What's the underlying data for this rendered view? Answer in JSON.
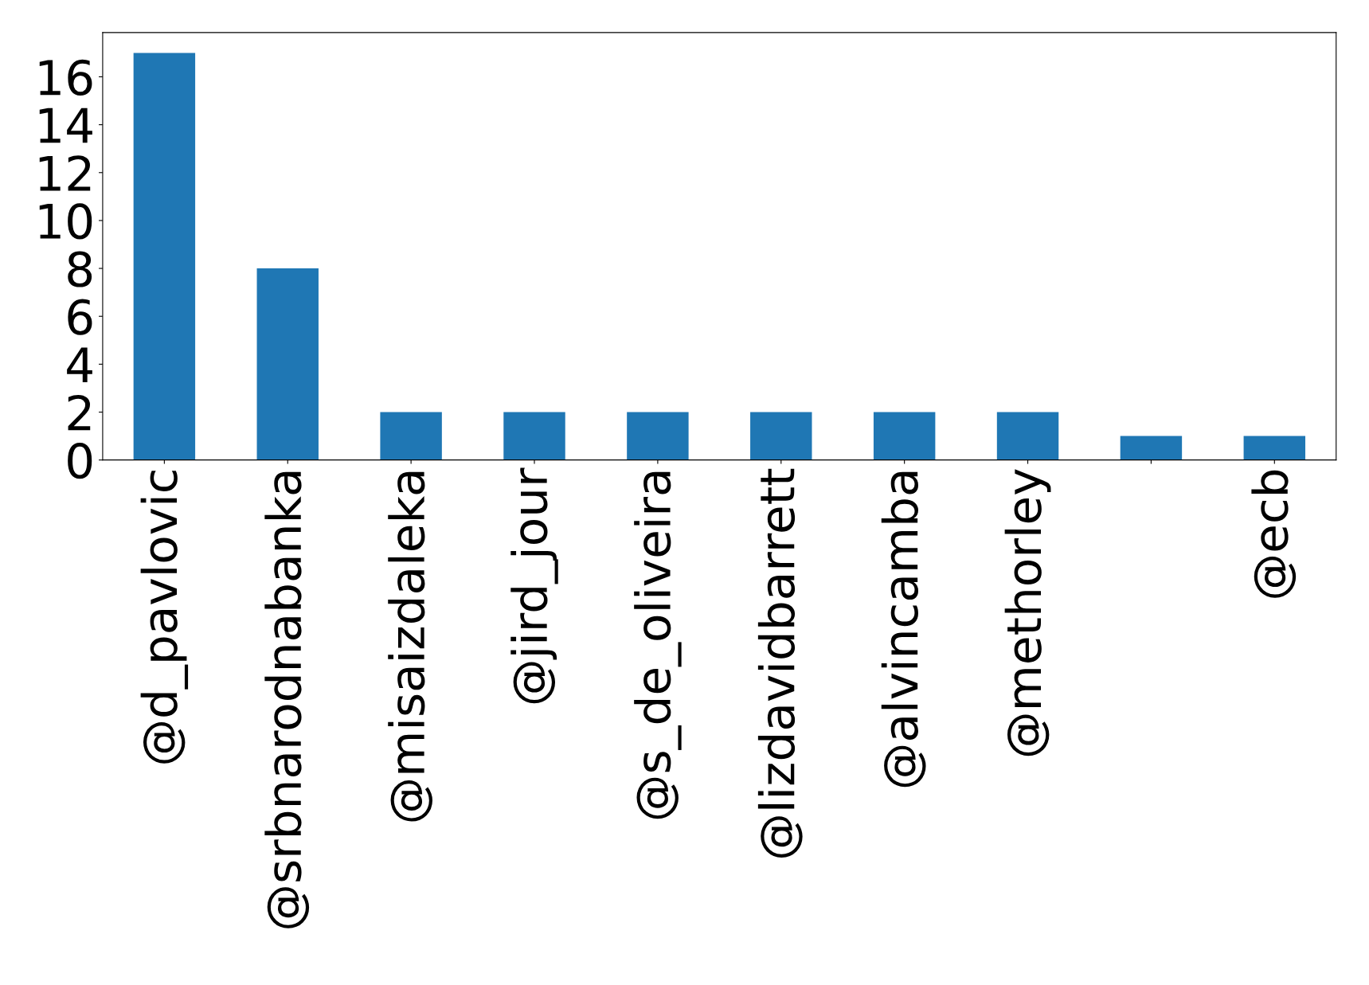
{
  "chart_data": {
    "type": "bar",
    "categories": [
      "@d_pavlovic",
      "@srbnarodnabanka",
      "@misaizdaleka",
      "@jird_jour",
      "@s_de_oliveira",
      "@lizdavidbarrett",
      "@alvincamba",
      "@methorley",
      null,
      "@ecb"
    ],
    "values": [
      17,
      8,
      2,
      2,
      2,
      2,
      2,
      2,
      1,
      1
    ],
    "color": "#1f77b4",
    "ylim": [
      0,
      17.85
    ],
    "yticks": [
      0,
      2,
      4,
      6,
      8,
      10,
      12,
      14,
      16
    ],
    "grid": false,
    "legend": false
  }
}
